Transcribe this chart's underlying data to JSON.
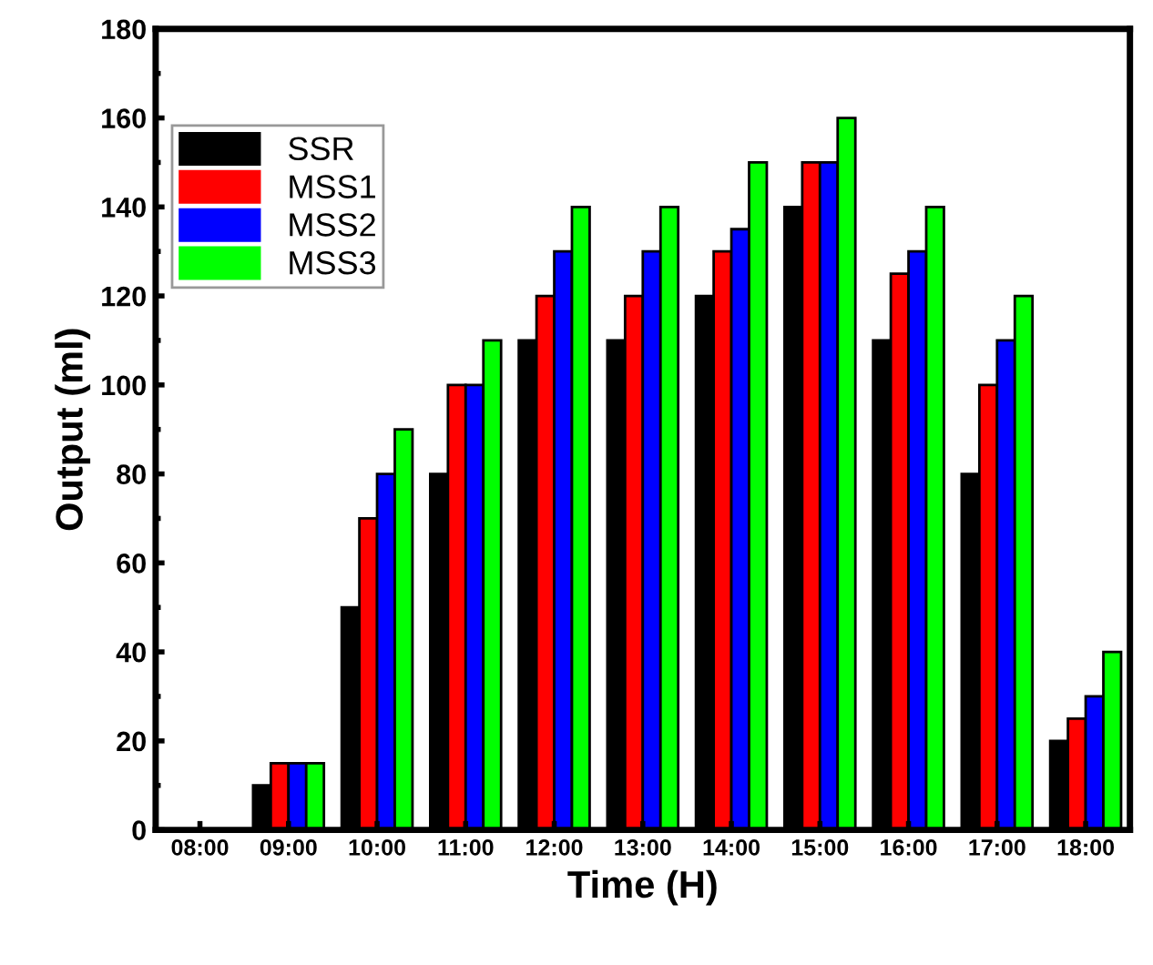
{
  "chart_data": {
    "type": "bar",
    "xlabel": "Time (H)",
    "ylabel": "Output (ml)",
    "categories": [
      "08:00",
      "09:00",
      "10:00",
      "11:00",
      "12:00",
      "13:00",
      "14:00",
      "15:00",
      "16:00",
      "17:00",
      "18:00"
    ],
    "series": [
      {
        "name": "SSR",
        "color": "#000000",
        "values": [
          0,
          10,
          50,
          80,
          110,
          110,
          120,
          140,
          110,
          80,
          20
        ]
      },
      {
        "name": "MSS1",
        "color": "#ff0000",
        "values": [
          0,
          15,
          70,
          100,
          120,
          120,
          130,
          150,
          125,
          100,
          25
        ]
      },
      {
        "name": "MSS2",
        "color": "#0000ff",
        "values": [
          0,
          15,
          80,
          100,
          130,
          130,
          135,
          150,
          130,
          110,
          30
        ]
      },
      {
        "name": "MSS3",
        "color": "#00ff00",
        "values": [
          0,
          15,
          90,
          110,
          140,
          140,
          150,
          160,
          140,
          120,
          40
        ]
      }
    ],
    "ylim": [
      0,
      180
    ],
    "yticks": [
      0,
      20,
      40,
      60,
      80,
      100,
      120,
      140,
      160,
      180
    ],
    "legend": "top left",
    "grid": false
  }
}
